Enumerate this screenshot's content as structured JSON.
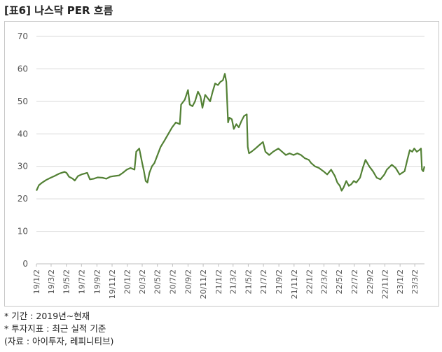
{
  "title": "[표6] 나스닥 PER 흐름",
  "notes": [
    "* 기간 : 2019년~현재",
    "* 투자지표 : 최근 실적 기준",
    "(자료 : 아이투자, 레피니티브)"
  ],
  "colors": {
    "line": "#538135",
    "grid": "#d9d9d9",
    "axis": "#bfbfbf"
  },
  "chart_data": {
    "type": "line",
    "title": "",
    "xlabel": "",
    "ylabel": "",
    "ylim": [
      0,
      70
    ],
    "yticks": [
      0,
      10,
      20,
      30,
      40,
      50,
      60,
      70
    ],
    "grid": true,
    "xlim": [
      "2019-01-02",
      "2023-04-10"
    ],
    "x_tick_labels": [
      "19/1/2",
      "19/3/2",
      "19/5/2",
      "19/7/2",
      "19/9/2",
      "19/11/2",
      "20/1/2",
      "20/3/2",
      "20/5/2",
      "20/7/2",
      "20/9/2",
      "20/11/2",
      "21/1/2",
      "21/3/2",
      "21/5/2",
      "21/7/2",
      "21/9/2",
      "21/11/2",
      "22/1/2",
      "22/3/2",
      "22/5/2",
      "22/7/2",
      "22/9/2",
      "22/11/2",
      "23/1/2",
      "23/3/2"
    ],
    "x_tick_dates": [
      "2019-01-02",
      "2019-03-02",
      "2019-05-02",
      "2019-07-02",
      "2019-09-02",
      "2019-11-02",
      "2020-01-02",
      "2020-03-02",
      "2020-05-02",
      "2020-07-02",
      "2020-09-02",
      "2020-11-02",
      "2021-01-02",
      "2021-03-02",
      "2021-05-02",
      "2021-07-02",
      "2021-09-02",
      "2021-11-02",
      "2022-01-02",
      "2022-03-02",
      "2022-05-02",
      "2022-07-02",
      "2022-09-02",
      "2022-11-02",
      "2023-01-02",
      "2023-03-02"
    ],
    "series": [
      {
        "points": [
          [
            "2019-01-02",
            22.5
          ],
          [
            "2019-01-12",
            24.2
          ],
          [
            "2019-01-25",
            25.0
          ],
          [
            "2019-02-10",
            25.8
          ],
          [
            "2019-02-28",
            26.5
          ],
          [
            "2019-03-15",
            27.0
          ],
          [
            "2019-04-05",
            27.8
          ],
          [
            "2019-04-25",
            28.3
          ],
          [
            "2019-05-03",
            28.0
          ],
          [
            "2019-05-13",
            26.8
          ],
          [
            "2019-05-28",
            26.2
          ],
          [
            "2019-06-05",
            25.6
          ],
          [
            "2019-06-18",
            27.0
          ],
          [
            "2019-07-05",
            27.6
          ],
          [
            "2019-07-25",
            28.0
          ],
          [
            "2019-08-05",
            26.0
          ],
          [
            "2019-08-20",
            26.2
          ],
          [
            "2019-09-05",
            26.6
          ],
          [
            "2019-09-25",
            26.5
          ],
          [
            "2019-10-10",
            26.2
          ],
          [
            "2019-10-25",
            26.8
          ],
          [
            "2019-11-10",
            27.0
          ],
          [
            "2019-11-30",
            27.2
          ],
          [
            "2019-12-15",
            28.0
          ],
          [
            "2019-12-31",
            29.0
          ],
          [
            "2020-01-15",
            29.5
          ],
          [
            "2020-01-31",
            29.0
          ],
          [
            "2020-02-07",
            34.5
          ],
          [
            "2020-02-19",
            35.5
          ],
          [
            "2020-03-02",
            31.0
          ],
          [
            "2020-03-09",
            28.5
          ],
          [
            "2020-03-16",
            25.5
          ],
          [
            "2020-03-23",
            25.0
          ],
          [
            "2020-03-31",
            28.0
          ],
          [
            "2020-04-10",
            30.0
          ],
          [
            "2020-04-20",
            31.0
          ],
          [
            "2020-04-30",
            33.0
          ],
          [
            "2020-05-15",
            36.0
          ],
          [
            "2020-05-31",
            38.0
          ],
          [
            "2020-06-15",
            40.0
          ],
          [
            "2020-06-30",
            42.0
          ],
          [
            "2020-07-15",
            43.5
          ],
          [
            "2020-07-31",
            43.0
          ],
          [
            "2020-08-05",
            49.0
          ],
          [
            "2020-08-20",
            50.5
          ],
          [
            "2020-09-02",
            53.5
          ],
          [
            "2020-09-09",
            49.0
          ],
          [
            "2020-09-20",
            48.5
          ],
          [
            "2020-09-30",
            50.0
          ],
          [
            "2020-10-12",
            53.0
          ],
          [
            "2020-10-22",
            51.5
          ],
          [
            "2020-10-30",
            48.0
          ],
          [
            "2020-11-10",
            52.0
          ],
          [
            "2020-11-20",
            51.0
          ],
          [
            "2020-11-30",
            50.0
          ],
          [
            "2020-12-10",
            53.0
          ],
          [
            "2020-12-20",
            55.5
          ],
          [
            "2020-12-31",
            55.0
          ],
          [
            "2021-01-10",
            56.0
          ],
          [
            "2021-01-20",
            56.5
          ],
          [
            "2021-01-28",
            58.5
          ],
          [
            "2021-02-03",
            56.0
          ],
          [
            "2021-02-10",
            43.5
          ],
          [
            "2021-02-15",
            45.0
          ],
          [
            "2021-02-25",
            44.5
          ],
          [
            "2021-03-05",
            41.5
          ],
          [
            "2021-03-15",
            43.0
          ],
          [
            "2021-03-25",
            42.0
          ],
          [
            "2021-04-05",
            44.0
          ],
          [
            "2021-04-15",
            45.5
          ],
          [
            "2021-04-26",
            46.0
          ],
          [
            "2021-04-30",
            36.0
          ],
          [
            "2021-05-05",
            34.0
          ],
          [
            "2021-05-15",
            34.5
          ],
          [
            "2021-05-31",
            35.5
          ],
          [
            "2021-06-15",
            36.5
          ],
          [
            "2021-06-30",
            37.5
          ],
          [
            "2021-07-10",
            34.5
          ],
          [
            "2021-07-25",
            33.5
          ],
          [
            "2021-08-10",
            34.5
          ],
          [
            "2021-08-31",
            35.5
          ],
          [
            "2021-09-15",
            34.5
          ],
          [
            "2021-09-30",
            33.5
          ],
          [
            "2021-10-15",
            34.0
          ],
          [
            "2021-10-31",
            33.5
          ],
          [
            "2021-11-15",
            34.0
          ],
          [
            "2021-11-30",
            33.5
          ],
          [
            "2021-12-15",
            32.5
          ],
          [
            "2021-12-31",
            32.0
          ],
          [
            "2022-01-10",
            31.0
          ],
          [
            "2022-01-25",
            30.0
          ],
          [
            "2022-02-10",
            29.5
          ],
          [
            "2022-02-28",
            28.5
          ],
          [
            "2022-03-15",
            27.5
          ],
          [
            "2022-03-31",
            29.0
          ],
          [
            "2022-04-15",
            27.0
          ],
          [
            "2022-04-25",
            25.0
          ],
          [
            "2022-05-05",
            24.0
          ],
          [
            "2022-05-12",
            22.5
          ],
          [
            "2022-05-20",
            23.5
          ],
          [
            "2022-05-31",
            25.5
          ],
          [
            "2022-06-10",
            24.0
          ],
          [
            "2022-06-20",
            24.5
          ],
          [
            "2022-06-30",
            25.5
          ],
          [
            "2022-07-10",
            25.0
          ],
          [
            "2022-07-25",
            26.5
          ],
          [
            "2022-08-05",
            29.5
          ],
          [
            "2022-08-16",
            32.0
          ],
          [
            "2022-08-31",
            30.0
          ],
          [
            "2022-09-15",
            28.5
          ],
          [
            "2022-09-30",
            26.5
          ],
          [
            "2022-10-15",
            26.0
          ],
          [
            "2022-10-31",
            27.5
          ],
          [
            "2022-11-10",
            29.0
          ],
          [
            "2022-11-30",
            30.5
          ],
          [
            "2022-12-15",
            29.5
          ],
          [
            "2022-12-31",
            27.5
          ],
          [
            "2023-01-10",
            28.0
          ],
          [
            "2023-01-20",
            28.5
          ],
          [
            "2023-01-31",
            32.0
          ],
          [
            "2023-02-10",
            35.0
          ],
          [
            "2023-02-20",
            34.5
          ],
          [
            "2023-02-28",
            35.5
          ],
          [
            "2023-03-10",
            34.5
          ],
          [
            "2023-03-20",
            35.0
          ],
          [
            "2023-03-27",
            35.5
          ],
          [
            "2023-03-31",
            29.0
          ],
          [
            "2023-04-05",
            28.5
          ],
          [
            "2023-04-10",
            30.0
          ]
        ]
      }
    ]
  }
}
